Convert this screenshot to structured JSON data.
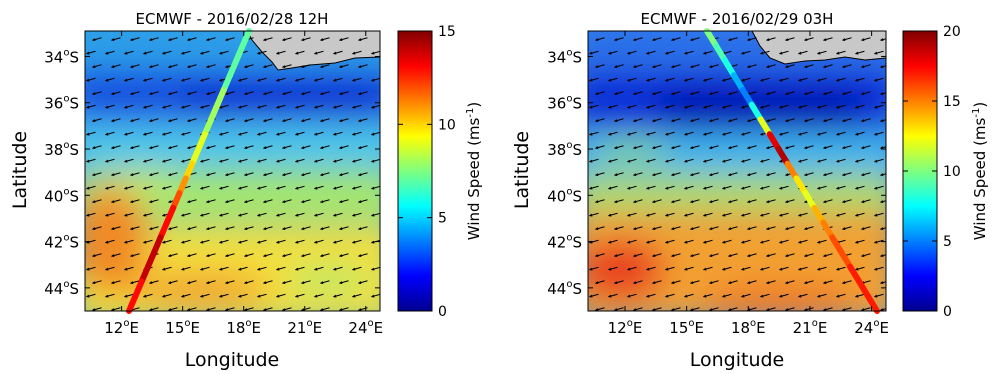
{
  "panels": [
    {
      "title": "ECMWF - 2016/02/28 12H",
      "xlabel": "Longitude",
      "ylabel": "Latitude",
      "xticks": [
        "12",
        "15",
        "18",
        "21",
        "24"
      ],
      "yticks": [
        "34",
        "36",
        "38",
        "40",
        "42",
        "44"
      ],
      "xlim": [
        10.2,
        24.7
      ],
      "ylim": [
        -45.0,
        -32.9
      ],
      "colorbar": {
        "label": "Wind Speed (ms",
        "unit_exp": "-1",
        "ticks": [
          "0",
          "5",
          "10",
          "15"
        ],
        "max": 15
      },
      "track_speeds": [
        7,
        7,
        7,
        7,
        8,
        8,
        8,
        9,
        9,
        10,
        11,
        12,
        13,
        13,
        14,
        14,
        14,
        13,
        13
      ],
      "wind_direction": "west-northwest"
    },
    {
      "title": "ECMWF - 2016/02/29 03H",
      "xlabel": "Longitude",
      "ylabel": "Latitude",
      "xticks": [
        "12",
        "15",
        "18",
        "21",
        "24"
      ],
      "yticks": [
        "34",
        "36",
        "38",
        "40",
        "42",
        "44"
      ],
      "xlim": [
        10.2,
        24.7
      ],
      "ylim": [
        -45.0,
        -32.9
      ],
      "colorbar": {
        "label": "Wind Speed (ms",
        "unit_exp": "-1",
        "ticks": [
          "0",
          "5",
          "10",
          "15",
          "20"
        ],
        "max": 20
      },
      "track_speeds": [
        10,
        9,
        8,
        6,
        5,
        8,
        12,
        18,
        19,
        15,
        13,
        12,
        14,
        15,
        16,
        16,
        17,
        17,
        17
      ],
      "wind_direction": "west-northwest"
    }
  ],
  "tick_suffix": {
    "lon": "E",
    "lat": "S",
    "degree_mark": "o"
  },
  "colors": {
    "land": "#c8c8c8",
    "frame": "#000000",
    "arrows": "#000000"
  }
}
